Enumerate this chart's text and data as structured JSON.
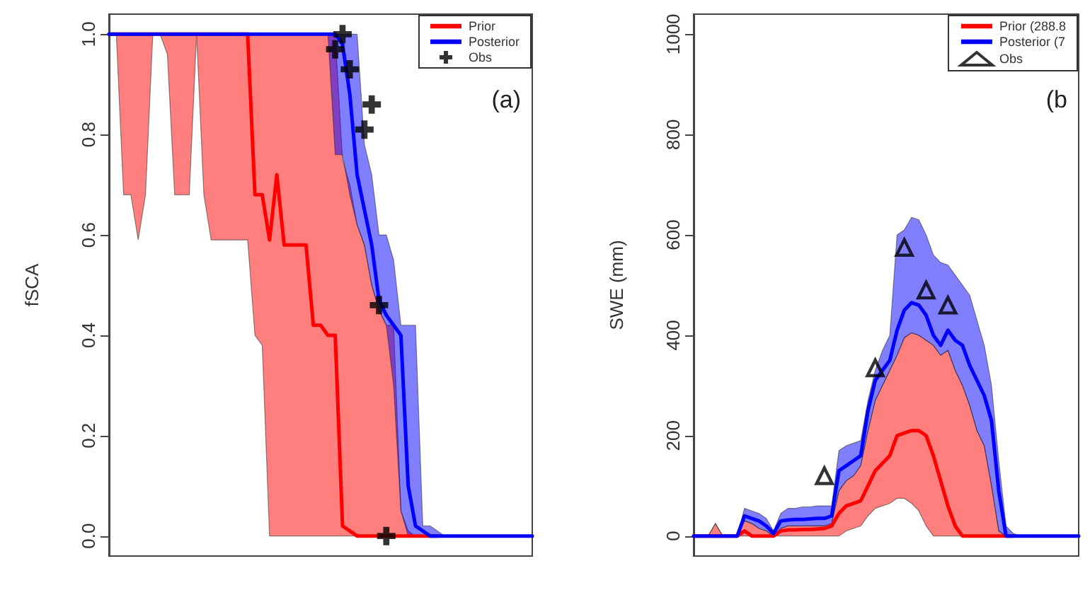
{
  "chart_data": [
    {
      "type": "line",
      "ylabel": "fSCA",
      "categories": [
        null,
        null,
        null,
        null,
        null,
        null,
        null,
        null,
        null,
        null,
        null,
        null,
        null,
        null,
        null,
        null,
        null,
        null,
        null,
        null,
        null,
        null,
        null,
        null,
        null,
        null,
        null,
        null,
        null,
        null,
        null,
        null,
        null,
        null,
        null,
        null,
        null,
        null,
        null,
        null,
        null,
        null,
        null,
        null,
        null,
        null,
        null,
        null,
        null,
        null,
        null,
        null,
        null,
        null,
        null,
        null,
        null,
        null,
        null
      ],
      "ylim": [
        -0.04,
        1.04
      ],
      "yticks": [
        {
          "value": 0,
          "label": "0.0"
        },
        0.2,
        0.4,
        0.6,
        0.8,
        {
          "value": 1,
          "label": "1.0"
        }
      ],
      "tick_labels": "y",
      "legend": "top right",
      "annotations": [
        "(a)"
      ],
      "series": [
        {
          "name": "Prior",
          "color": "#ff0000",
          "marker": "none",
          "values": [
            1,
            1,
            1,
            1,
            1,
            1,
            1,
            1,
            1,
            1,
            1,
            1,
            1,
            1,
            1,
            1,
            1,
            1,
            1,
            1,
            0.68,
            0.68,
            0.59,
            0.72,
            0.58,
            0.58,
            0.58,
            0.58,
            0.42,
            0.42,
            0.4,
            0.4,
            0.02,
            0.01,
            0,
            0,
            0,
            0,
            0,
            0,
            0,
            0,
            0,
            0,
            0,
            0,
            null,
            null,
            null,
            null,
            null,
            null,
            null,
            null,
            null,
            null,
            null,
            null,
            null
          ],
          "lower": [
            1,
            1,
            0.68,
            0.68,
            0.59,
            0.68,
            1,
            1,
            0.96,
            0.68,
            0.68,
            0.68,
            1,
            0.68,
            0.59,
            0.59,
            0.59,
            0.59,
            0.59,
            0.59,
            0.4,
            0.38,
            0,
            0,
            0,
            0,
            0,
            0,
            0,
            0,
            0,
            0,
            0,
            0,
            0,
            0,
            0,
            0,
            0,
            0,
            0,
            0,
            0,
            0,
            0,
            0,
            0,
            0,
            0,
            0,
            0,
            0,
            0,
            0,
            0,
            0,
            0,
            0,
            0
          ],
          "upper": [
            1,
            1,
            1,
            1,
            1,
            1,
            1,
            1,
            1,
            1,
            1,
            1,
            1,
            1,
            1,
            1,
            1,
            1,
            1,
            1,
            1,
            1,
            1,
            1,
            1,
            1,
            1,
            1,
            1,
            1,
            1,
            1,
            0.75,
            0.7,
            0.62,
            0.58,
            0.5,
            0.45,
            0.42,
            0.42,
            0.05,
            0.01,
            0,
            0,
            0,
            0,
            0,
            0,
            0,
            0,
            0,
            0,
            0,
            0,
            0,
            0,
            0,
            0,
            0
          ]
        },
        {
          "name": "Posterior",
          "color": "#0000ff",
          "marker": "none",
          "values": [
            1,
            1,
            1,
            1,
            1,
            1,
            1,
            1,
            1,
            1,
            1,
            1,
            1,
            1,
            1,
            1,
            1,
            1,
            1,
            1,
            1,
            1,
            1,
            1,
            1,
            1,
            1,
            1,
            1,
            1,
            1,
            1,
            0.98,
            0.88,
            0.72,
            0.65,
            0.58,
            0.47,
            0.44,
            0.42,
            0.4,
            0.1,
            0.02,
            0.01,
            0,
            0,
            0,
            0,
            0,
            0,
            0,
            0,
            0,
            0,
            0,
            0,
            0,
            0,
            0
          ],
          "lower": [
            null,
            null,
            null,
            null,
            null,
            null,
            null,
            null,
            null,
            null,
            null,
            null,
            null,
            null,
            null,
            null,
            null,
            null,
            null,
            null,
            null,
            null,
            null,
            null,
            null,
            null,
            null,
            null,
            null,
            null,
            1,
            0.76,
            0.76,
            0.68,
            0.62,
            0.58,
            0.5,
            0.45,
            0.42,
            0.3,
            0.05,
            0,
            0,
            0,
            0,
            0,
            0,
            0,
            0,
            0,
            0,
            0,
            0,
            0,
            0,
            0,
            0,
            0,
            0
          ],
          "upper": [
            null,
            null,
            null,
            null,
            null,
            null,
            null,
            null,
            null,
            null,
            null,
            null,
            null,
            null,
            null,
            null,
            null,
            null,
            null,
            null,
            null,
            null,
            null,
            null,
            null,
            null,
            null,
            null,
            null,
            null,
            1,
            1,
            1,
            1,
            1,
            0.78,
            0.72,
            0.6,
            0.6,
            0.55,
            0.42,
            0.42,
            0.42,
            0.02,
            0.02,
            0.01,
            0,
            0,
            0,
            0,
            0,
            0,
            0,
            0,
            0,
            0,
            0,
            0,
            0
          ]
        },
        {
          "name": "Obs",
          "type": "scatter",
          "color": "#000000",
          "marker": "cross",
          "values": [
            null,
            null,
            null,
            null,
            null,
            null,
            null,
            null,
            null,
            null,
            null,
            null,
            null,
            null,
            null,
            null,
            null,
            null,
            null,
            null,
            null,
            null,
            null,
            null,
            null,
            null,
            null,
            null,
            null,
            null,
            null,
            0.97,
            1,
            0.93,
            null,
            0.81,
            0.86,
            0.46,
            0,
            null,
            null,
            null,
            null,
            null,
            null,
            null,
            null,
            null,
            null,
            null,
            null,
            null,
            null,
            null,
            null,
            null,
            null,
            null,
            null
          ]
        }
      ]
    },
    {
      "type": "line",
      "ylabel": "SWE (mm)",
      "categories": [
        null,
        null,
        null,
        null,
        null,
        null,
        null,
        null,
        null,
        null,
        null,
        null,
        null,
        null,
        null,
        null,
        null,
        null,
        null,
        null,
        null,
        null,
        null,
        null,
        null,
        null,
        null,
        null,
        null,
        null,
        null,
        null,
        null,
        null,
        null,
        null,
        null,
        null,
        null,
        null,
        null,
        null,
        null,
        null,
        null,
        null,
        null,
        null,
        null,
        null,
        null,
        null,
        null,
        null
      ],
      "ylim": [
        -40,
        1040
      ],
      "yticks": [
        0,
        200,
        400,
        600,
        800,
        1000
      ],
      "tick_labels": "y",
      "legend": "top right",
      "annotations": [
        "(b"
      ],
      "series": [
        {
          "name": "Prior (288.8",
          "color": "#ff0000",
          "marker": "none",
          "values": [
            0,
            0,
            0,
            0,
            0,
            0,
            0,
            10,
            0,
            0,
            0,
            0,
            10,
            12,
            12,
            13,
            13,
            14,
            15,
            20,
            45,
            60,
            65,
            70,
            100,
            130,
            145,
            160,
            200,
            205,
            210,
            210,
            200,
            160,
            110,
            60,
            20,
            0,
            0,
            0,
            0,
            0,
            0,
            0,
            0,
            null,
            null,
            null,
            null,
            null,
            null,
            null,
            null,
            null
          ],
          "lower": [
            0,
            0,
            0,
            0,
            0,
            0,
            0,
            0,
            0,
            0,
            0,
            0,
            0,
            0,
            0,
            0,
            0,
            0,
            0,
            0,
            0,
            10,
            15,
            20,
            40,
            55,
            60,
            65,
            75,
            75,
            65,
            50,
            20,
            0,
            0,
            0,
            0,
            0,
            0,
            0,
            0,
            0,
            0,
            0,
            0,
            0,
            0,
            0,
            0,
            0,
            0,
            0,
            0,
            0
          ],
          "upper": [
            0,
            0,
            0,
            25,
            0,
            0,
            0,
            30,
            25,
            15,
            10,
            0,
            15,
            20,
            20,
            20,
            20,
            20,
            20,
            25,
            90,
            110,
            120,
            140,
            210,
            270,
            300,
            330,
            360,
            395,
            405,
            400,
            390,
            380,
            360,
            370,
            330,
            300,
            260,
            210,
            180,
            100,
            10,
            0,
            0,
            0,
            0,
            0,
            0,
            0,
            0,
            0,
            0,
            0
          ]
        },
        {
          "name": "Posterior (7",
          "color": "#0000ff",
          "marker": "none",
          "values": [
            0,
            0,
            0,
            0,
            0,
            0,
            0,
            40,
            35,
            30,
            20,
            5,
            30,
            32,
            33,
            33,
            34,
            35,
            35,
            40,
            130,
            140,
            150,
            160,
            250,
            310,
            330,
            350,
            410,
            450,
            465,
            460,
            440,
            400,
            380,
            410,
            390,
            380,
            340,
            310,
            280,
            230,
            90,
            0,
            0,
            0,
            0,
            0,
            0,
            0,
            0,
            0,
            0,
            0
          ],
          "lower": [
            0,
            0,
            0,
            25,
            0,
            0,
            0,
            30,
            25,
            15,
            10,
            0,
            15,
            20,
            20,
            20,
            20,
            20,
            20,
            25,
            90,
            110,
            120,
            140,
            210,
            270,
            300,
            330,
            360,
            395,
            405,
            400,
            390,
            380,
            360,
            370,
            330,
            300,
            260,
            210,
            180,
            100,
            10,
            0,
            0,
            0,
            0,
            0,
            0,
            0,
            0,
            0,
            0,
            0
          ],
          "upper": [
            0,
            0,
            0,
            25,
            0,
            0,
            0,
            55,
            50,
            45,
            35,
            10,
            45,
            55,
            55,
            58,
            58,
            60,
            60,
            60,
            170,
            180,
            185,
            190,
            270,
            330,
            370,
            400,
            600,
            610,
            635,
            630,
            600,
            560,
            545,
            540,
            520,
            500,
            480,
            430,
            380,
            300,
            150,
            20,
            5,
            0,
            0,
            0,
            0,
            0,
            0,
            0,
            0,
            0
          ]
        },
        {
          "name": "Obs",
          "type": "scatter",
          "color": "#000000",
          "marker": "triangle",
          "values": [
            null,
            null,
            null,
            null,
            null,
            null,
            null,
            null,
            null,
            null,
            null,
            null,
            null,
            null,
            null,
            null,
            null,
            null,
            120,
            null,
            null,
            null,
            null,
            null,
            null,
            335,
            null,
            null,
            null,
            575,
            null,
            null,
            490,
            null,
            null,
            460,
            null,
            null,
            null,
            null,
            null,
            null,
            null,
            null,
            null,
            null,
            null,
            null,
            null,
            null,
            null,
            null,
            null,
            null
          ]
        }
      ]
    }
  ]
}
